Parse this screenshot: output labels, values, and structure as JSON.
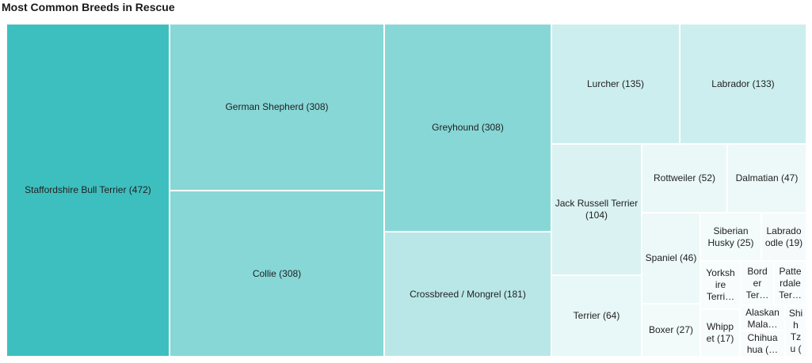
{
  "chart_data": {
    "type": "treemap",
    "title": "Most Common Breeds in Rescue",
    "items": [
      {
        "name": "Staffordshire Bull Terrier",
        "value": 472,
        "label": "Staffordshire Bull Terrier (472)",
        "color": "#3dbfbf"
      },
      {
        "name": "German Shepherd",
        "value": 308,
        "label": "German Shepherd (308)",
        "color": "#87d7d7"
      },
      {
        "name": "Collie",
        "value": 308,
        "label": "Collie (308)",
        "color": "#87d7d7"
      },
      {
        "name": "Greyhound",
        "value": 308,
        "label": "Greyhound (308)",
        "color": "#87d7d7"
      },
      {
        "name": "Crossbreed / Mongrel",
        "value": 181,
        "label": "Crossbreed / Mongrel (181)",
        "color": "#b9e7e7"
      },
      {
        "name": "Lurcher",
        "value": 135,
        "label": "Lurcher (135)",
        "color": "#cdeeee"
      },
      {
        "name": "Labrador",
        "value": 133,
        "label": "Labrador (133)",
        "color": "#cdeeee"
      },
      {
        "name": "Jack Russell Terrier",
        "value": 104,
        "label": "Jack Russell Terrier (104)",
        "color": "#daf2f2"
      },
      {
        "name": "Terrier",
        "value": 64,
        "label": "Terrier (64)",
        "color": "#e8f7f7"
      },
      {
        "name": "Rottweiler",
        "value": 52,
        "label": "Rottweiler (52)",
        "color": "#ebf8f8"
      },
      {
        "name": "Dalmatian",
        "value": 47,
        "label": "Dalmatian (47)",
        "color": "#edf8f8"
      },
      {
        "name": "Spaniel",
        "value": 46,
        "label": "Spaniel (46)",
        "color": "#edf8f8"
      },
      {
        "name": "Boxer",
        "value": 27,
        "label": "Boxer (27)",
        "color": "#f2fafa"
      },
      {
        "name": "Siberian Husky",
        "value": 25,
        "label": "Siberian Husky (25)",
        "color": "#f3fbfb"
      },
      {
        "name": "Labradoodle",
        "value": 19,
        "label": "Labrado odle (19)",
        "color": "#f5fbfb"
      },
      {
        "name": "Whippet",
        "value": 17,
        "label": "Whipp et (17)",
        "color": "#f6fcfc"
      },
      {
        "name": "Yorkshire Terrier",
        "value": null,
        "label": "Yorksh ire Terri…",
        "color": "#f7fcfc"
      },
      {
        "name": "Border Terrier",
        "value": null,
        "label": "Bord er Ter…",
        "color": "#f7fcfc"
      },
      {
        "name": "Patterdale Terrier",
        "value": null,
        "label": "Patte rdale Ter…",
        "color": "#f7fcfc"
      },
      {
        "name": "Alaskan Malamute",
        "value": null,
        "label": "Alaskan Mala…",
        "color": "#f8fcfc"
      },
      {
        "name": "Chihuahua",
        "value": null,
        "label": "Chihua hua (…",
        "color": "#f8fcfc"
      },
      {
        "name": "Shih Tzu",
        "value": null,
        "label": "Shi h Tz u (",
        "color": "#f8fcfc"
      }
    ]
  }
}
